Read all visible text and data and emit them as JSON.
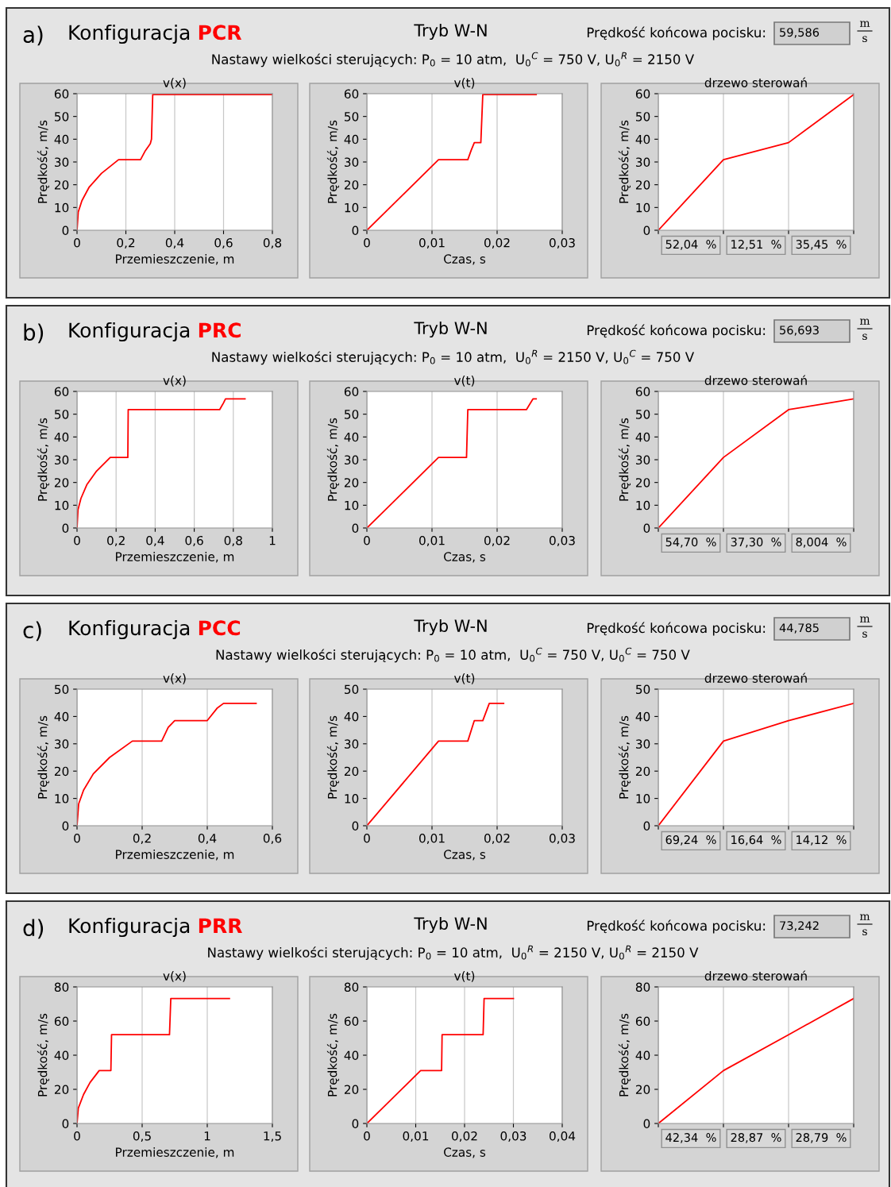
{
  "chart_data": [
    {
      "type": "other",
      "color": "#ff0000",
      "annotations": [
        "a)",
        "Konfiguracja",
        "PCR",
        "Tryb W-N",
        "Prędkość końcowa pocisku:",
        "59,586",
        "m",
        "s",
        "Nastawy wielkości sterujących: P$_{0}$ = 10 atm,  U$_{0}$$^{C}$ = 750 V, U$_{0}$$^{R}$ = 2150 V"
      ]
    },
    {
      "type": "line",
      "title": "v(x)",
      "xlabel": "Przemieszczenie, m",
      "ylabel": "Prędkość, m/s",
      "grid": "x",
      "xlim": [
        0,
        0.8
      ],
      "xticks": [
        0,
        {
          "value": 0.2,
          "label": "0,2"
        },
        {
          "value": 0.4,
          "label": "0,4"
        },
        {
          "value": 0.6,
          "label": "0,6"
        },
        {
          "value": 0.8,
          "label": "0,8"
        }
      ],
      "ylim": [
        0,
        60
      ],
      "yticks": [
        0,
        10,
        20,
        30,
        40,
        50,
        60
      ],
      "series": [
        {
          "color": "#ff0000",
          "x": [
            0,
            0.005,
            0.02,
            0.05,
            0.1,
            0.17,
            0.26,
            0.28,
            0.3,
            0.305,
            0.31,
            0.8
          ],
          "values": [
            0,
            8,
            13,
            19,
            25,
            31,
            31,
            35,
            38,
            40,
            59.6,
            59.6
          ]
        }
      ]
    },
    {
      "type": "line",
      "title": "v(t)",
      "xlabel": "Czas, s",
      "ylabel": "Prędkość, m/s",
      "grid": "x",
      "xlim": [
        0,
        0.03
      ],
      "xticks": [
        0,
        {
          "value": 0.01,
          "label": "0,01"
        },
        {
          "value": 0.02,
          "label": "0,02"
        },
        {
          "value": 0.03,
          "label": "0,03"
        }
      ],
      "ylim": [
        0,
        60
      ],
      "yticks": [
        0,
        10,
        20,
        30,
        40,
        50,
        60
      ],
      "series": [
        {
          "color": "#ff0000",
          "x": [
            0,
            0.011,
            0.0155,
            0.016,
            0.0165,
            0.0175,
            0.0178,
            0.026
          ],
          "values": [
            0,
            31,
            31,
            35,
            38.5,
            38.5,
            59.6,
            59.6
          ]
        }
      ]
    },
    {
      "type": "line",
      "title": "drzewo sterowań",
      "ylabel": "Prędkość, m/s",
      "grid": "x",
      "tick_labels": "y",
      "categories": [
        null,
        null,
        null,
        null
      ],
      "ylim": [
        0,
        60
      ],
      "yticks": [
        0,
        10,
        20,
        30,
        40,
        50,
        60
      ],
      "annotations": [
        "52,04  %",
        "12,51  %",
        "35,45  %"
      ],
      "series": [
        {
          "color": "#ff0000",
          "values": [
            0,
            31,
            38.5,
            59.6
          ]
        }
      ]
    },
    {
      "type": "other",
      "color": "#ff0000",
      "annotations": [
        "b)",
        "Konfiguracja",
        "PRC",
        "Tryb W-N",
        "Prędkość końcowa pocisku:",
        "56,693",
        "m",
        "s",
        "Nastawy wielkości sterujących: P$_{0}$ = 10 atm,  U$_{0}$$^{R}$ = 2150 V, U$_{0}$$^{C}$ = 750 V"
      ]
    },
    {
      "type": "line",
      "title": "v(x)",
      "xlabel": "Przemieszczenie, m",
      "ylabel": "Prędkość, m/s",
      "grid": "x",
      "xlim": [
        0,
        1
      ],
      "xticks": [
        0,
        {
          "value": 0.2,
          "label": "0,2"
        },
        {
          "value": 0.4,
          "label": "0,4"
        },
        {
          "value": 0.6,
          "label": "0,6"
        },
        {
          "value": 0.8,
          "label": "0,8"
        },
        1
      ],
      "ylim": [
        0,
        60
      ],
      "yticks": [
        0,
        10,
        20,
        30,
        40,
        50,
        60
      ],
      "series": [
        {
          "color": "#ff0000",
          "x": [
            0,
            0.005,
            0.02,
            0.05,
            0.1,
            0.17,
            0.26,
            0.262,
            0.73,
            0.75,
            0.76,
            0.86
          ],
          "values": [
            0,
            8,
            13,
            19,
            25,
            31,
            31,
            52,
            52,
            55,
            56.7,
            56.7
          ]
        }
      ]
    },
    {
      "type": "line",
      "title": "v(t)",
      "xlabel": "Czas, s",
      "ylabel": "Prędkość, m/s",
      "grid": "x",
      "xlim": [
        0,
        0.03
      ],
      "xticks": [
        0,
        {
          "value": 0.01,
          "label": "0,01"
        },
        {
          "value": 0.02,
          "label": "0,02"
        },
        {
          "value": 0.03,
          "label": "0,03"
        }
      ],
      "ylim": [
        0,
        60
      ],
      "yticks": [
        0,
        10,
        20,
        30,
        40,
        50,
        60
      ],
      "series": [
        {
          "color": "#ff0000",
          "x": [
            0,
            0.011,
            0.0153,
            0.0155,
            0.0245,
            0.0255,
            0.026
          ],
          "values": [
            0,
            31,
            31,
            52,
            52,
            56.7,
            56.7
          ]
        }
      ]
    },
    {
      "type": "line",
      "title": "drzewo sterowań",
      "ylabel": "Prędkość, m/s",
      "grid": "x",
      "tick_labels": "y",
      "categories": [
        null,
        null,
        null,
        null
      ],
      "ylim": [
        0,
        60
      ],
      "yticks": [
        0,
        10,
        20,
        30,
        40,
        50,
        60
      ],
      "annotations": [
        "54,70  %",
        "37,30  %",
        "8,004  %"
      ],
      "series": [
        {
          "color": "#ff0000",
          "values": [
            0,
            31,
            52,
            56.7
          ]
        }
      ]
    },
    {
      "type": "other",
      "color": "#ff0000",
      "annotations": [
        "c)",
        "Konfiguracja",
        "PCC",
        "Tryb W-N",
        "Prędkość końcowa pocisku:",
        "44,785",
        "m",
        "s",
        "Nastawy wielkości sterujących: P$_{0}$ = 10 atm,  U$_{0}$$^{C}$ = 750 V, U$_{0}$$^{C}$ = 750 V"
      ]
    },
    {
      "type": "line",
      "title": "v(x)",
      "xlabel": "Przemieszczenie, m",
      "ylabel": "Prędkość, m/s",
      "grid": "x",
      "xlim": [
        0,
        0.6
      ],
      "xticks": [
        0,
        {
          "value": 0.2,
          "label": "0,2"
        },
        {
          "value": 0.4,
          "label": "0,4"
        },
        {
          "value": 0.6,
          "label": "0,6"
        }
      ],
      "ylim": [
        0,
        50
      ],
      "yticks": [
        0,
        10,
        20,
        30,
        40,
        50
      ],
      "series": [
        {
          "color": "#ff0000",
          "x": [
            0,
            0.005,
            0.02,
            0.05,
            0.1,
            0.17,
            0.26,
            0.28,
            0.3,
            0.4,
            0.43,
            0.45,
            0.55
          ],
          "values": [
            0,
            8,
            13,
            19,
            25,
            31,
            31,
            36,
            38.5,
            38.5,
            43,
            44.8,
            44.8
          ]
        }
      ]
    },
    {
      "type": "line",
      "title": "v(t)",
      "xlabel": "Czas, s",
      "ylabel": "Prędkość, m/s",
      "grid": "x",
      "xlim": [
        0,
        0.03
      ],
      "xticks": [
        0,
        {
          "value": 0.01,
          "label": "0,01"
        },
        {
          "value": 0.02,
          "label": "0,02"
        },
        {
          "value": 0.03,
          "label": "0,03"
        }
      ],
      "ylim": [
        0,
        50
      ],
      "yticks": [
        0,
        10,
        20,
        30,
        40,
        50
      ],
      "series": [
        {
          "color": "#ff0000",
          "x": [
            0,
            0.011,
            0.0155,
            0.0165,
            0.0178,
            0.0188,
            0.021
          ],
          "values": [
            0,
            31,
            31,
            38.5,
            38.5,
            44.8,
            44.8
          ]
        }
      ]
    },
    {
      "type": "line",
      "title": "drzewo sterowań",
      "ylabel": "Prędkość, m/s",
      "grid": "x",
      "tick_labels": "y",
      "categories": [
        null,
        null,
        null,
        null
      ],
      "ylim": [
        0,
        50
      ],
      "yticks": [
        0,
        10,
        20,
        30,
        40,
        50
      ],
      "annotations": [
        "69,24  %",
        "16,64  %",
        "14,12  %"
      ],
      "series": [
        {
          "color": "#ff0000",
          "values": [
            0,
            31,
            38.5,
            44.8
          ]
        }
      ]
    },
    {
      "type": "other",
      "color": "#ff0000",
      "annotations": [
        "d)",
        "Konfiguracja",
        "PRR",
        "Tryb W-N",
        "Prędkość końcowa pocisku:",
        "73,242",
        "m",
        "s",
        "Nastawy wielkości sterujących: P$_{0}$ = 10 atm,  U$_{0}$$^{R}$ = 2150 V, U$_{0}$$^{R}$ = 2150 V"
      ]
    },
    {
      "type": "line",
      "title": "v(x)",
      "xlabel": "Przemieszczenie, m",
      "ylabel": "Prędkość, m/s",
      "grid": "x",
      "xlim": [
        0,
        1.5
      ],
      "xticks": [
        0,
        {
          "value": 0.5,
          "label": "0,5"
        },
        1,
        {
          "value": 1.5,
          "label": "1,5"
        }
      ],
      "ylim": [
        0,
        80
      ],
      "yticks": [
        0,
        20,
        40,
        60,
        80
      ],
      "series": [
        {
          "color": "#ff0000",
          "x": [
            0,
            0.01,
            0.05,
            0.1,
            0.17,
            0.26,
            0.265,
            0.71,
            0.72,
            1.17
          ],
          "values": [
            0,
            9,
            17,
            24,
            31,
            31,
            52,
            52,
            73.2,
            73.2
          ]
        }
      ]
    },
    {
      "type": "line",
      "title": "v(t)",
      "xlabel": "Czas, s",
      "ylabel": "Prędkość, m/s",
      "grid": "x",
      "xlim": [
        0,
        0.04
      ],
      "xticks": [
        0,
        {
          "value": 0.01,
          "label": "0,01"
        },
        {
          "value": 0.02,
          "label": "0,02"
        },
        {
          "value": 0.03,
          "label": "0,03"
        },
        {
          "value": 0.04,
          "label": "0,04"
        }
      ],
      "ylim": [
        0,
        80
      ],
      "yticks": [
        0,
        20,
        40,
        60,
        80
      ],
      "series": [
        {
          "color": "#ff0000",
          "x": [
            0,
            0.011,
            0.0153,
            0.0154,
            0.0238,
            0.024,
            0.03
          ],
          "values": [
            0,
            31,
            31,
            52,
            52,
            73.2,
            73.2
          ]
        }
      ]
    },
    {
      "type": "line",
      "title": "drzewo sterowań",
      "ylabel": "Prędkość, m/s",
      "grid": "x",
      "tick_labels": "y",
      "categories": [
        null,
        null,
        null,
        null
      ],
      "ylim": [
        0,
        80
      ],
      "yticks": [
        0,
        20,
        40,
        60,
        80
      ],
      "annotations": [
        "42,34  %",
        "28,87  %",
        "28,79  %"
      ],
      "series": [
        {
          "color": "#ff0000",
          "values": [
            0,
            31,
            52,
            73.2
          ]
        }
      ]
    }
  ]
}
